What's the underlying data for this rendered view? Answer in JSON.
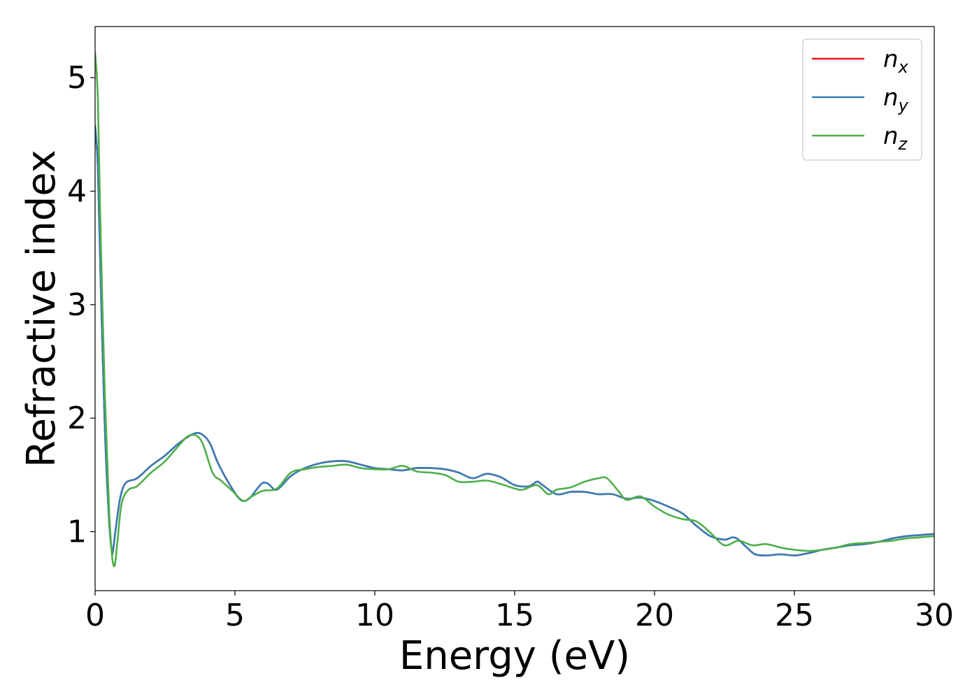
{
  "chart_data": {
    "type": "line",
    "title": "",
    "xlabel": "Energy (eV)",
    "ylabel": "Refractive index",
    "xlim": [
      0,
      30
    ],
    "ylim": [
      0.48,
      5.45
    ],
    "xticks": [
      0,
      5,
      10,
      15,
      20,
      25,
      30
    ],
    "yticks": [
      1,
      2,
      3,
      4,
      5
    ],
    "grid": false,
    "legend_position": "top-right",
    "series": [
      {
        "name": "n",
        "subscript": "x",
        "color": "#e41a1c",
        "x": [
          0,
          0.1,
          0.2,
          0.35,
          0.5,
          0.6,
          0.65,
          0.75,
          0.9,
          1.1,
          1.5,
          2.0,
          2.5,
          3.0,
          3.5,
          3.8,
          4.1,
          4.4,
          4.8,
          5.2,
          5.5,
          5.8,
          6.0,
          6.2,
          6.5,
          7.0,
          7.5,
          8.0,
          8.5,
          9.0,
          9.5,
          10.0,
          10.5,
          11.0,
          11.5,
          12.0,
          12.5,
          13.0,
          13.5,
          14.0,
          14.5,
          15.0,
          15.5,
          15.8,
          16.0,
          16.5,
          17.0,
          17.5,
          18.0,
          18.5,
          19.0,
          19.5,
          20.0,
          20.5,
          21.0,
          21.5,
          22.0,
          22.5,
          22.8,
          23.0,
          23.3,
          23.6,
          24.0,
          24.5,
          25.0,
          25.5,
          26.0,
          26.5,
          27.0,
          27.5,
          28.0,
          28.5,
          29.0,
          29.5,
          30.0
        ],
        "y": [
          4.58,
          4.2,
          3.2,
          1.9,
          1.1,
          0.82,
          0.85,
          1.05,
          1.3,
          1.43,
          1.47,
          1.58,
          1.67,
          1.78,
          1.86,
          1.86,
          1.78,
          1.6,
          1.42,
          1.28,
          1.29,
          1.38,
          1.43,
          1.42,
          1.37,
          1.49,
          1.56,
          1.6,
          1.62,
          1.62,
          1.59,
          1.56,
          1.55,
          1.54,
          1.56,
          1.56,
          1.55,
          1.52,
          1.47,
          1.51,
          1.48,
          1.41,
          1.4,
          1.44,
          1.41,
          1.33,
          1.35,
          1.35,
          1.33,
          1.33,
          1.29,
          1.3,
          1.27,
          1.22,
          1.16,
          1.05,
          0.96,
          0.93,
          0.95,
          0.93,
          0.86,
          0.8,
          0.79,
          0.8,
          0.79,
          0.81,
          0.84,
          0.86,
          0.88,
          0.89,
          0.91,
          0.94,
          0.96,
          0.97,
          0.98
        ]
      },
      {
        "name": "n",
        "subscript": "y",
        "color": "#377eb8",
        "x": [
          0,
          0.1,
          0.2,
          0.35,
          0.5,
          0.6,
          0.65,
          0.75,
          0.9,
          1.1,
          1.5,
          2.0,
          2.5,
          3.0,
          3.5,
          3.8,
          4.1,
          4.4,
          4.8,
          5.2,
          5.5,
          5.8,
          6.0,
          6.2,
          6.5,
          7.0,
          7.5,
          8.0,
          8.5,
          9.0,
          9.5,
          10.0,
          10.5,
          11.0,
          11.5,
          12.0,
          12.5,
          13.0,
          13.5,
          14.0,
          14.5,
          15.0,
          15.5,
          15.8,
          16.0,
          16.5,
          17.0,
          17.5,
          18.0,
          18.5,
          19.0,
          19.5,
          20.0,
          20.5,
          21.0,
          21.5,
          22.0,
          22.5,
          22.8,
          23.0,
          23.3,
          23.6,
          24.0,
          24.5,
          25.0,
          25.5,
          26.0,
          26.5,
          27.0,
          27.5,
          28.0,
          28.5,
          29.0,
          29.5,
          30.0
        ],
        "y": [
          4.58,
          4.2,
          3.2,
          1.9,
          1.1,
          0.82,
          0.85,
          1.05,
          1.3,
          1.43,
          1.47,
          1.58,
          1.67,
          1.78,
          1.86,
          1.86,
          1.78,
          1.6,
          1.42,
          1.28,
          1.29,
          1.38,
          1.43,
          1.42,
          1.37,
          1.49,
          1.56,
          1.6,
          1.62,
          1.62,
          1.59,
          1.56,
          1.55,
          1.54,
          1.56,
          1.56,
          1.55,
          1.52,
          1.47,
          1.51,
          1.48,
          1.41,
          1.4,
          1.44,
          1.41,
          1.33,
          1.35,
          1.35,
          1.33,
          1.33,
          1.29,
          1.3,
          1.27,
          1.22,
          1.16,
          1.05,
          0.96,
          0.93,
          0.95,
          0.93,
          0.86,
          0.8,
          0.79,
          0.8,
          0.79,
          0.81,
          0.84,
          0.86,
          0.88,
          0.89,
          0.91,
          0.94,
          0.96,
          0.97,
          0.98
        ]
      },
      {
        "name": "n",
        "subscript": "z",
        "color": "#4daf4a",
        "x": [
          0,
          0.1,
          0.2,
          0.35,
          0.5,
          0.6,
          0.7,
          0.8,
          0.95,
          1.2,
          1.5,
          2.0,
          2.5,
          3.0,
          3.4,
          3.8,
          4.2,
          4.5,
          4.9,
          5.3,
          5.6,
          6.0,
          6.5,
          7.0,
          7.5,
          8.0,
          8.5,
          9.0,
          9.5,
          10.0,
          10.5,
          11.0,
          11.5,
          12.0,
          12.5,
          13.0,
          13.5,
          14.0,
          14.5,
          15.0,
          15.3,
          15.8,
          16.2,
          16.5,
          17.0,
          17.5,
          18.0,
          18.3,
          18.7,
          19.0,
          19.5,
          20.0,
          20.5,
          21.0,
          21.5,
          22.0,
          22.5,
          23.0,
          23.5,
          24.0,
          24.5,
          25.0,
          25.5,
          26.0,
          26.5,
          27.0,
          27.5,
          28.0,
          28.5,
          29.0,
          29.5,
          30.0
        ],
        "y": [
          5.22,
          4.8,
          3.6,
          2.2,
          1.2,
          0.8,
          0.7,
          0.92,
          1.25,
          1.37,
          1.4,
          1.52,
          1.62,
          1.76,
          1.85,
          1.8,
          1.52,
          1.45,
          1.36,
          1.27,
          1.31,
          1.36,
          1.38,
          1.52,
          1.55,
          1.57,
          1.58,
          1.59,
          1.56,
          1.55,
          1.55,
          1.58,
          1.53,
          1.52,
          1.5,
          1.44,
          1.44,
          1.45,
          1.42,
          1.38,
          1.37,
          1.41,
          1.33,
          1.37,
          1.39,
          1.44,
          1.47,
          1.47,
          1.36,
          1.28,
          1.31,
          1.22,
          1.15,
          1.11,
          1.09,
          0.99,
          0.88,
          0.92,
          0.88,
          0.89,
          0.86,
          0.84,
          0.83,
          0.84,
          0.86,
          0.89,
          0.9,
          0.91,
          0.92,
          0.94,
          0.95,
          0.96
        ]
      }
    ]
  }
}
